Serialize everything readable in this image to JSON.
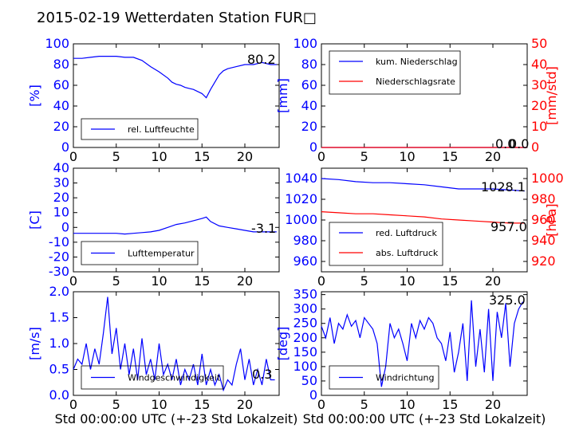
{
  "title": "2015-02-19 Wetterdaten Station FUR□",
  "colors": {
    "blue": "#0000ff",
    "red": "#ff0000",
    "black": "#000000"
  },
  "chart_data": [
    {
      "id": "humidity",
      "type": "line",
      "xlabel": "",
      "ylabel": "[%]",
      "ylabel_color": "#0000ff",
      "xlim": [
        0,
        24
      ],
      "xticks": [
        0,
        5,
        10,
        15,
        20
      ],
      "ylim": [
        0,
        100
      ],
      "yticks": [
        0,
        20,
        40,
        60,
        80,
        100
      ],
      "value_label": "80.2",
      "legend": {
        "placement": "lower-center",
        "entries": [
          "rel. Luftfeuchte"
        ]
      },
      "series": [
        {
          "name": "rel. Luftfeuchte",
          "color": "#0000ff",
          "x": [
            0,
            1,
            2,
            3,
            4,
            5,
            6,
            7,
            8,
            9,
            10,
            11,
            11.5,
            12,
            12.5,
            13,
            13.5,
            14,
            14.5,
            15,
            15.5,
            16,
            16.5,
            17,
            17.5,
            18,
            19,
            20,
            21,
            22,
            23,
            23.7
          ],
          "y": [
            86,
            86,
            87,
            88,
            88,
            88,
            87,
            87,
            84,
            78,
            73,
            67,
            63,
            61,
            60,
            58,
            57,
            56,
            54,
            52,
            48,
            56,
            63,
            70,
            74,
            76,
            78,
            80,
            80,
            82,
            80,
            80
          ]
        }
      ]
    },
    {
      "id": "precipitation",
      "type": "line",
      "xlabel": "",
      "ylabel": "[mm]",
      "ylabel_color": "#0000ff",
      "y2label": "[mm/std]",
      "y2label_color": "#ff0000",
      "xlim": [
        0,
        24
      ],
      "xticks": [
        0,
        5,
        10,
        15,
        20
      ],
      "ylim": [
        0,
        100
      ],
      "yticks": [
        0,
        20,
        40,
        60,
        80,
        100
      ],
      "y2lim": [
        0,
        50
      ],
      "y2ticks": [
        0,
        10,
        20,
        30,
        40,
        50
      ],
      "value_label": "0.0",
      "value_label_2": "0.0",
      "legend": {
        "placement": "upper-left",
        "entries": [
          "kum. Niederschlag",
          "Niederschlagsrate"
        ]
      },
      "series": [
        {
          "name": "kum. Niederschlag",
          "color": "#0000ff",
          "x": [
            0,
            24
          ],
          "y": [
            0,
            0
          ]
        },
        {
          "name": "Niederschlagsrate",
          "color": "#ff0000",
          "axis": "right",
          "x": [
            0,
            24
          ],
          "y": [
            0,
            0
          ]
        }
      ]
    },
    {
      "id": "temperature",
      "type": "line",
      "xlabel": "",
      "ylabel": "[C]",
      "ylabel_color": "#0000ff",
      "xlim": [
        0,
        24
      ],
      "xticks": [
        0,
        5,
        10,
        15,
        20
      ],
      "ylim": [
        -30,
        40
      ],
      "yticks": [
        -30,
        -20,
        -10,
        0,
        10,
        20,
        30,
        40
      ],
      "value_label": "-3.1",
      "legend": {
        "placement": "lower-center",
        "entries": [
          "Lufttemperatur"
        ]
      },
      "series": [
        {
          "name": "Lufttemperatur",
          "color": "#0000ff",
          "x": [
            0,
            1,
            2,
            3,
            4,
            5,
            6,
            7,
            8,
            9,
            10,
            11,
            12,
            13,
            14,
            15,
            15.5,
            16,
            17,
            18,
            19,
            20,
            21,
            22,
            23,
            23.7
          ],
          "y": [
            -4,
            -4,
            -4,
            -4,
            -4,
            -4,
            -4.5,
            -4,
            -3.5,
            -3,
            -2,
            0,
            2,
            3,
            4.5,
            6,
            7,
            4,
            1,
            0,
            -1,
            -2,
            -3,
            -3,
            -3,
            -3
          ]
        }
      ]
    },
    {
      "id": "pressure",
      "type": "line",
      "xlabel": "",
      "ylabel": "",
      "y2label": "[hPa]",
      "y2label_color": "#ff0000",
      "xlim": [
        0,
        24
      ],
      "xticks": [
        0,
        5,
        10,
        15,
        20
      ],
      "ylim": [
        950,
        1050
      ],
      "yticks": [
        960,
        980,
        1000,
        1020,
        1040
      ],
      "y2lim": [
        910,
        1010
      ],
      "y2ticks": [
        920,
        940,
        960,
        980,
        1000
      ],
      "value_label": "1028.1",
      "value_label_2": "957.0",
      "legend": {
        "placement": "lower-left",
        "entries": [
          "red. Luftdruck",
          "abs. Luftdruck"
        ]
      },
      "series": [
        {
          "name": "red. Luftdruck",
          "color": "#0000ff",
          "x": [
            0,
            2,
            4,
            6,
            8,
            10,
            12,
            14,
            16,
            18,
            20,
            22,
            23.7
          ],
          "y": [
            1040,
            1039,
            1037,
            1036,
            1036,
            1035,
            1034,
            1032,
            1030,
            1030,
            1030,
            1029,
            1028
          ]
        },
        {
          "name": "abs. Luftdruck",
          "color": "#ff0000",
          "axis": "right",
          "x": [
            0,
            2,
            4,
            6,
            8,
            10,
            12,
            14,
            16,
            18,
            20,
            22,
            23.7
          ],
          "y": [
            968,
            967,
            966,
            966,
            965,
            964,
            963,
            961,
            960,
            959,
            958,
            957,
            957
          ]
        }
      ]
    },
    {
      "id": "windspeed",
      "type": "line",
      "xlabel": "Std 00:00:00 UTC (+-23 Std Lokalzeit)",
      "ylabel": "[m/s]",
      "ylabel_color": "#0000ff",
      "xlim": [
        0,
        24
      ],
      "xticks": [
        0,
        5,
        10,
        15,
        20
      ],
      "ylim": [
        0,
        2
      ],
      "yticks": [
        0,
        0.5,
        1.0,
        1.5,
        2.0
      ],
      "value_label": "0.3",
      "legend": {
        "placement": "lower-center",
        "entries": [
          "Windgeschwindigkeit"
        ]
      },
      "series": [
        {
          "name": "Windgeschwindigkeit",
          "color": "#0000ff",
          "x": [
            0,
            0.5,
            1,
            1.5,
            2,
            2.5,
            3,
            3.5,
            4,
            4.5,
            5,
            5.5,
            6,
            6.5,
            7,
            7.5,
            8,
            8.5,
            9,
            9.5,
            10,
            10.5,
            11,
            11.5,
            12,
            12.5,
            13,
            13.5,
            14,
            14.5,
            15,
            15.5,
            16,
            16.5,
            17,
            17.5,
            18,
            18.5,
            19,
            19.5,
            20,
            20.5,
            21,
            21.5,
            22,
            22.5,
            23,
            23.5
          ],
          "y": [
            0.5,
            0.7,
            0.6,
            1.0,
            0.5,
            0.9,
            0.6,
            1.2,
            1.9,
            0.8,
            1.3,
            0.5,
            1.0,
            0.4,
            0.9,
            0.3,
            1.1,
            0.4,
            0.7,
            0.3,
            1.0,
            0.4,
            0.6,
            0.3,
            0.7,
            0.2,
            0.5,
            0.3,
            0.6,
            0.2,
            0.8,
            0.2,
            0.5,
            0.2,
            0.4,
            0.1,
            0.3,
            0.2,
            0.6,
            0.9,
            0.3,
            0.7,
            0.2,
            0.5,
            0.2,
            0.7,
            0.3,
            0.3
          ]
        }
      ]
    },
    {
      "id": "winddirection",
      "type": "line",
      "xlabel": "Std 00:00:00 UTC (+-23 Std Lokalzeit)",
      "ylabel": "[deg]",
      "ylabel_color": "#0000ff",
      "xlim": [
        0,
        24
      ],
      "xticks": [
        0,
        5,
        10,
        15,
        20
      ],
      "ylim": [
        0,
        360
      ],
      "yticks": [
        0,
        50,
        100,
        150,
        200,
        250,
        300,
        350
      ],
      "value_label": "325.0",
      "legend": {
        "placement": "lower-left",
        "entries": [
          "Windrichtung"
        ]
      },
      "series": [
        {
          "name": "Windrichtung",
          "color": "#0000ff",
          "x": [
            0,
            0.5,
            1,
            1.5,
            2,
            2.5,
            3,
            3.5,
            4,
            4.5,
            5,
            5.5,
            6,
            6.5,
            7,
            7.5,
            8,
            8.5,
            9,
            9.5,
            10,
            10.5,
            11,
            11.5,
            12,
            12.5,
            13,
            13.5,
            14,
            14.5,
            15,
            15.5,
            16,
            16.5,
            17,
            17.5,
            18,
            18.5,
            19,
            19.5,
            20,
            20.5,
            21,
            21.5,
            22,
            22.5,
            23,
            23.5
          ],
          "y": [
            240,
            200,
            270,
            180,
            250,
            230,
            280,
            240,
            260,
            200,
            270,
            250,
            230,
            180,
            30,
            100,
            250,
            200,
            230,
            180,
            120,
            250,
            200,
            260,
            230,
            270,
            250,
            200,
            180,
            120,
            220,
            80,
            150,
            250,
            50,
            330,
            100,
            230,
            80,
            300,
            50,
            290,
            200,
            320,
            100,
            250,
            300,
            325
          ]
        }
      ]
    }
  ]
}
